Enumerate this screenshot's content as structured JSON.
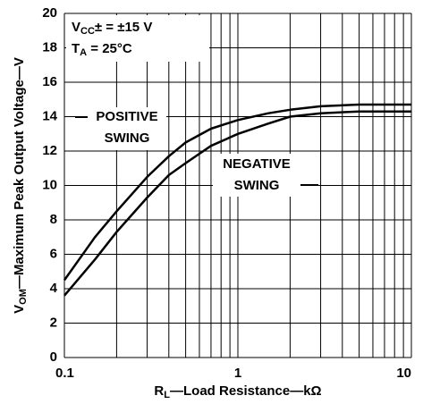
{
  "chart_data": {
    "type": "line",
    "x_label": [
      "R",
      "L",
      "—Load Resistance—kΩ"
    ],
    "y_label": [
      "V",
      "OM",
      "—Maximum Peak Output Voltage—V"
    ],
    "annotations": [
      {
        "parts": [
          "V",
          "CC",
          "± = ±15 V"
        ]
      },
      {
        "parts": [
          "T",
          "A",
          " = 25°C"
        ]
      },
      {
        "lines": [
          "POSITIVE",
          "SWING"
        ]
      },
      {
        "lines": [
          "NEGATIVE",
          "SWING"
        ]
      }
    ],
    "x": [
      0.1,
      0.15,
      0.2,
      0.3,
      0.4,
      0.5,
      0.7,
      1,
      1.5,
      2,
      3,
      5,
      10
    ],
    "series": [
      {
        "color": "#000000",
        "values": [
          4.5,
          7,
          8.5,
          10.5,
          11.7,
          12.5,
          13.3,
          13.8,
          14.2,
          14.4,
          14.6,
          14.7,
          14.7
        ]
      },
      {
        "color": "#000000",
        "values": [
          3.6,
          5.7,
          7.3,
          9.3,
          10.6,
          11.3,
          12.3,
          13,
          13.6,
          14,
          14.2,
          14.3,
          14.3
        ]
      }
    ],
    "xlim": [
      0.1,
      10
    ],
    "ylim": [
      0,
      20
    ],
    "xscale": "log",
    "xticks": [
      {
        "value": 0.1,
        "label": "0.1"
      },
      1,
      10
    ],
    "x_minor_grid": [
      0.2,
      0.3,
      0.4,
      0.5,
      0.6,
      0.7,
      0.8,
      0.9,
      2,
      3,
      4,
      5,
      6,
      7,
      8,
      9
    ],
    "yticks": [
      0,
      2,
      4,
      6,
      8,
      10,
      12,
      14,
      16,
      18,
      20
    ],
    "grid": true
  }
}
